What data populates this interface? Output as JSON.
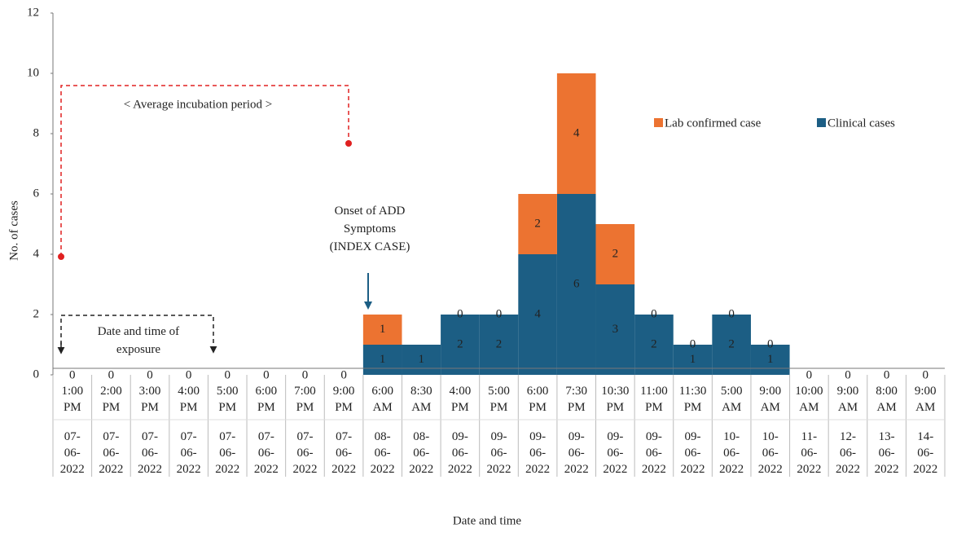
{
  "chart_data": {
    "type": "stacked-bar",
    "x_label": "Date and time",
    "y_label": "No. of cases",
    "categories": [
      "1:00 PM",
      "2:00 PM",
      "3:00 PM",
      "4:00 PM",
      "5:00 PM",
      "6:00 PM",
      "7:00 PM",
      "9:00 PM",
      "6:00 AM",
      "8:30 AM",
      "4:00 PM",
      "5:00 PM",
      "6:00 PM",
      "7:30 PM",
      "10:30 PM",
      "11:00 PM",
      "11:30 PM",
      "5:00 AM",
      "9:00 AM",
      "10:00 AM",
      "9:00 AM",
      "8:00 AM",
      "9:00 AM"
    ],
    "dates": [
      "07-06-2022",
      "07-06-2022",
      "07-06-2022",
      "07-06-2022",
      "07-06-2022",
      "07-06-2022",
      "07-06-2022",
      "07-06-2022",
      "08-06-2022",
      "08-06-2022",
      "09-06-2022",
      "09-06-2022",
      "09-06-2022",
      "09-06-2022",
      "09-06-2022",
      "09-06-2022",
      "09-06-2022",
      "10-06-2022",
      "10-06-2022",
      "11-06-2022",
      "12-06-2022",
      "13-06-2022",
      "14-06-2022"
    ],
    "series": [
      {
        "name": "Clinical cases",
        "color": "#1c5e84",
        "values": [
          0,
          0,
          0,
          0,
          0,
          0,
          0,
          0,
          1,
          1,
          2,
          2,
          4,
          6,
          3,
          2,
          1,
          2,
          1,
          0,
          0,
          0,
          0
        ],
        "value_labels": [
          "0",
          "0",
          "0",
          "0",
          "0",
          "0",
          "0",
          "0",
          "1",
          "1",
          "2",
          "2",
          "4",
          "6",
          "3",
          "2",
          "1",
          "2",
          "1",
          "0",
          "0",
          "0",
          "0"
        ]
      },
      {
        "name": "Lab confirmed case",
        "color": "#ec7331",
        "values": [
          0,
          0,
          0,
          0,
          0,
          0,
          0,
          0,
          1,
          0,
          0,
          0,
          2,
          4,
          2,
          0,
          0,
          0,
          0,
          0,
          0,
          0,
          0
        ],
        "value_labels": [
          null,
          null,
          null,
          null,
          null,
          null,
          null,
          null,
          "1",
          null,
          "0",
          "0",
          "2",
          "4",
          "2",
          "0",
          "0",
          "0",
          "0",
          null,
          null,
          null,
          null
        ]
      }
    ],
    "legend_order": [
      1,
      0
    ],
    "ylim": [
      0,
      12
    ],
    "yticks": [
      0,
      2,
      4,
      6,
      8,
      10,
      12
    ],
    "annotations": [
      "< Average incubation period >",
      "Onset of ADD Symptoms (INDEX CASE)",
      "Date and time of exposure"
    ]
  }
}
